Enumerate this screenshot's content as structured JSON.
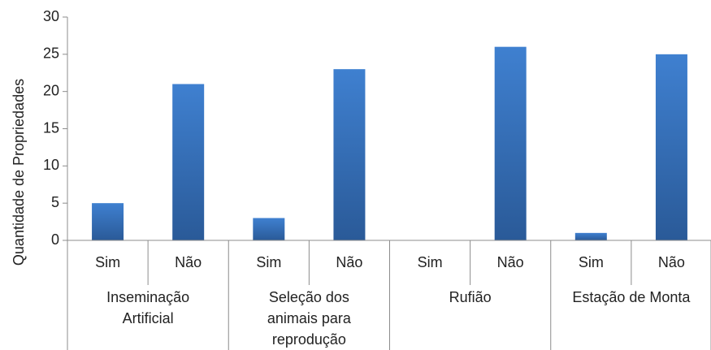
{
  "chart_data": {
    "type": "bar",
    "title": "",
    "xlabel": "",
    "ylabel": "Quantidade de Propriedades",
    "ylim": [
      0,
      30
    ],
    "yticks": [
      "0",
      "5",
      "10",
      "15",
      "20",
      "25",
      "30"
    ],
    "grid": false,
    "legend": "none",
    "bar_color": "#3b78c4",
    "groups": [
      {
        "label_lines": [
          "Inseminação",
          "Artificial"
        ],
        "categories": [
          "Sim",
          "Não"
        ],
        "values": [
          5,
          21
        ]
      },
      {
        "label_lines": [
          "Seleção dos",
          "animais para",
          "reprodução"
        ],
        "categories": [
          "Sim",
          "Não"
        ],
        "values": [
          3,
          23
        ]
      },
      {
        "label_lines": [
          "Rufião"
        ],
        "categories": [
          "Sim",
          "Não"
        ],
        "values": [
          0,
          26
        ]
      },
      {
        "label_lines": [
          "Estação de Monta"
        ],
        "categories": [
          "Sim",
          "Não"
        ],
        "values": [
          1,
          25
        ]
      }
    ]
  }
}
